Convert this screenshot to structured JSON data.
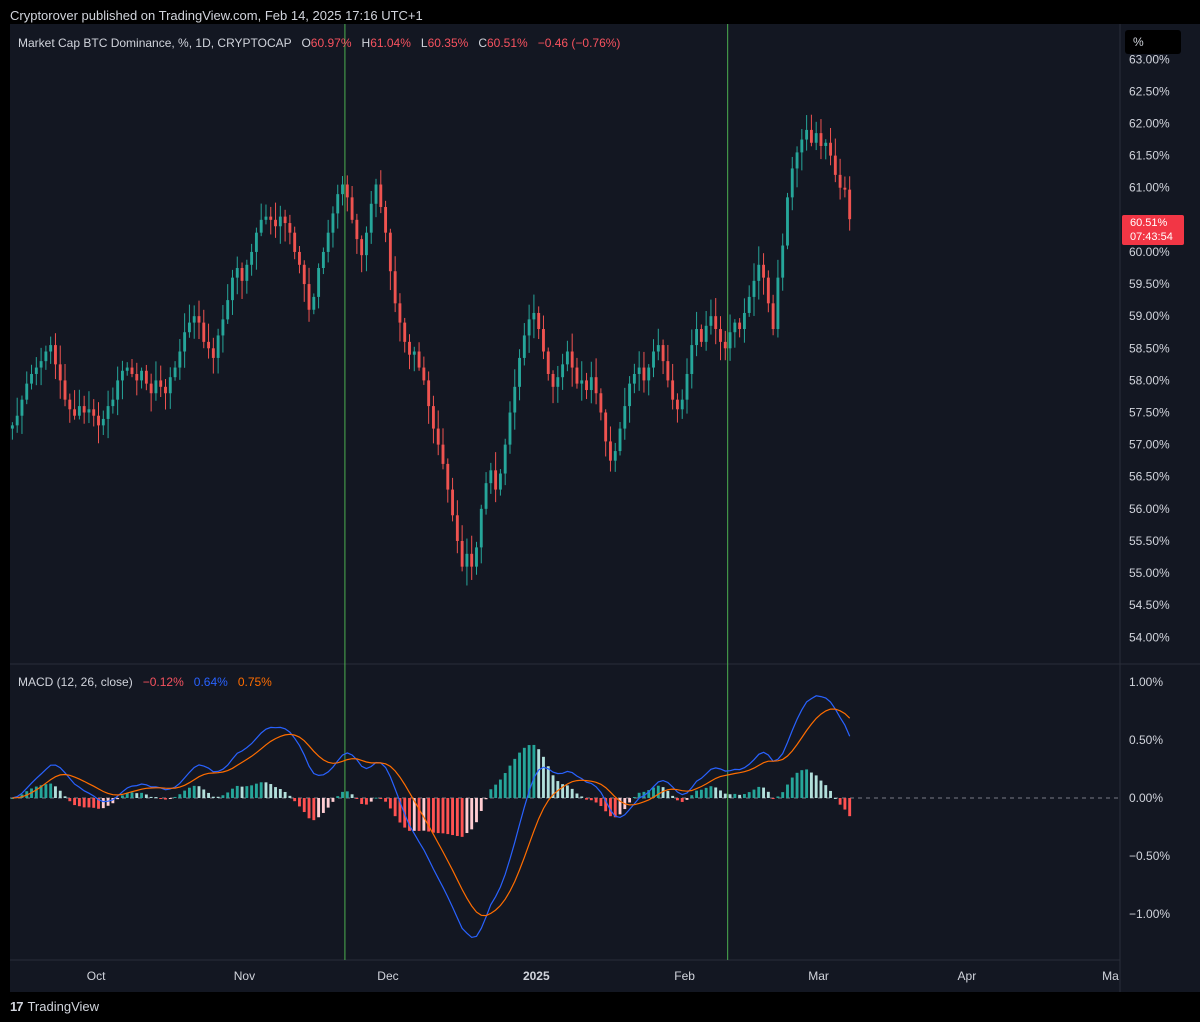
{
  "header": {
    "published": "Cryptorover published on TradingView.com, Feb 14, 2025 17:16 UTC+1"
  },
  "legend": {
    "symbol": "Market Cap BTC Dominance, %, 1D, CRYPTOCAP",
    "o_label": "O",
    "o_value": "60.97%",
    "h_label": "H",
    "h_value": "61.04%",
    "l_label": "L",
    "l_value": "60.35%",
    "c_label": "C",
    "c_value": "60.51%",
    "change": "−0.46 (−0.76%)"
  },
  "macd_legend": {
    "label": "MACD (12, 26, close)",
    "hist": "−0.12%",
    "macd": "0.64%",
    "signal": "0.75%"
  },
  "scale_button": "%",
  "price_tag": {
    "price": "60.51%",
    "countdown": "07:43:54"
  },
  "footer": {
    "brand": "TradingView",
    "logo_text": "17"
  },
  "colors": {
    "up": "#26a69a",
    "down": "#ef5350",
    "macd": "#2962ff",
    "signal": "#ff6d00",
    "background": "#131722",
    "vline": "#4caf50"
  },
  "chart_data": [
    {
      "type": "candlestick",
      "title": "Market Cap BTC Dominance, %, 1D, CRYPTOCAP",
      "x_tick_labels": [
        "Oct",
        "Nov",
        "Dec",
        "2025",
        "Feb",
        "Mar",
        "Apr",
        "Ma"
      ],
      "y_tick_labels": [
        "63.00%",
        "62.50%",
        "62.00%",
        "61.50%",
        "61.00%",
        "60.00%",
        "59.50%",
        "59.00%",
        "58.50%",
        "58.00%",
        "57.50%",
        "57.00%",
        "56.50%",
        "56.00%",
        "55.50%",
        "55.00%",
        "54.50%",
        "54.00%"
      ],
      "ylim": [
        53.6,
        63.3
      ],
      "x_range": [
        "2024-09-13",
        "2025-05-03"
      ],
      "vertical_markers": [
        "2024-11-22",
        "2025-02-10"
      ],
      "close": [
        57.3,
        57.45,
        57.7,
        57.95,
        58.1,
        58.2,
        58.3,
        58.45,
        58.55,
        58.25,
        58.0,
        57.7,
        57.55,
        57.45,
        57.6,
        57.5,
        57.55,
        57.45,
        57.3,
        57.4,
        57.6,
        57.7,
        58.0,
        58.15,
        58.2,
        58.1,
        58.0,
        58.15,
        57.95,
        57.8,
        58.0,
        57.9,
        57.8,
        58.05,
        58.2,
        58.45,
        58.75,
        58.9,
        59.0,
        58.9,
        58.6,
        58.5,
        58.35,
        58.7,
        58.95,
        59.25,
        59.6,
        59.75,
        59.55,
        59.8,
        60.0,
        60.3,
        60.5,
        60.55,
        60.5,
        60.4,
        60.55,
        60.45,
        60.3,
        60.0,
        59.8,
        59.5,
        59.1,
        59.3,
        59.75,
        60.0,
        60.3,
        60.6,
        60.9,
        61.05,
        60.85,
        60.5,
        60.2,
        59.95,
        60.3,
        60.75,
        61.05,
        60.7,
        60.3,
        59.7,
        59.2,
        58.9,
        58.6,
        58.4,
        58.45,
        58.2,
        58.0,
        57.6,
        57.25,
        57.0,
        56.7,
        56.3,
        55.9,
        55.5,
        55.1,
        55.3,
        55.1,
        55.4,
        56.0,
        56.4,
        56.6,
        56.3,
        56.55,
        57.0,
        57.5,
        57.9,
        58.35,
        58.7,
        58.95,
        59.05,
        58.8,
        58.45,
        58.1,
        57.9,
        58.05,
        58.25,
        58.45,
        58.2,
        57.95,
        58.0,
        57.85,
        58.05,
        57.8,
        57.5,
        57.05,
        56.75,
        56.9,
        57.25,
        57.6,
        57.95,
        58.1,
        58.2,
        58.0,
        58.2,
        58.45,
        58.55,
        58.3,
        58.0,
        57.7,
        57.55,
        57.7,
        58.1,
        58.55,
        58.8,
        58.6,
        58.85,
        59.0,
        58.8,
        58.6,
        58.5,
        58.75,
        58.9,
        58.8,
        59.05,
        59.3,
        59.55,
        59.8,
        59.6,
        59.2,
        58.8,
        59.6,
        60.1,
        60.85,
        61.3,
        61.55,
        61.75,
        61.9,
        61.7,
        61.85,
        61.65,
        61.7,
        61.5,
        61.2,
        61.0,
        60.97,
        60.51
      ]
    },
    {
      "type": "line",
      "title": "MACD (12, 26, close)",
      "y_tick_labels": [
        "1.00%",
        "0.50%",
        "0.00%",
        "−0.50%",
        "−1.00%"
      ],
      "ylim": [
        -1.38,
        1.13
      ],
      "series": [
        {
          "name": "MACD",
          "source": "computed from close (12, 26)"
        },
        {
          "name": "Signal",
          "source": "computed (9)"
        },
        {
          "name": "Histogram",
          "source": "MACD − Signal"
        }
      ]
    }
  ]
}
